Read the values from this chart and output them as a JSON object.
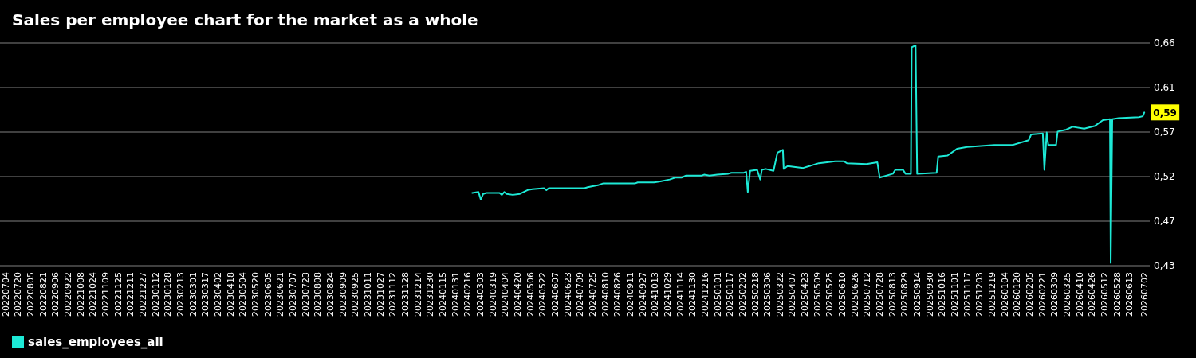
{
  "chart_data": {
    "type": "line",
    "title": "Sales per employee chart for the market as a whole",
    "x": [
      "2024-02-22",
      "2024-03-01",
      "2024-03-04",
      "2024-03-07",
      "2024-03-11",
      "2024-03-28",
      "2024-03-31",
      "2024-04-03",
      "2024-04-06",
      "2024-04-14",
      "2024-04-23",
      "2024-05-03",
      "2024-05-09",
      "2024-05-24",
      "2024-05-27",
      "2024-05-30",
      "2024-07-15",
      "2024-07-19",
      "2024-08-01",
      "2024-08-08",
      "2024-08-29",
      "2024-09-08",
      "2024-09-18",
      "2024-09-21",
      "2024-10-12",
      "2024-10-20",
      "2024-11-01",
      "2024-11-08",
      "2024-11-16",
      "2024-11-22",
      "2024-12-12",
      "2024-12-15",
      "2024-12-22",
      "2025-01-01",
      "2025-01-15",
      "2025-01-19",
      "2025-02-04",
      "2025-02-07",
      "2025-02-09",
      "2025-02-12",
      "2025-02-21",
      "2025-02-25",
      "2025-02-27",
      "2025-03-04",
      "2025-03-14",
      "2025-03-19",
      "2025-03-24",
      "2025-03-26",
      "2025-03-27",
      "2025-04-01",
      "2025-04-21",
      "2025-05-11",
      "2025-06-01",
      "2025-06-12",
      "2025-06-16",
      "2025-07-11",
      "2025-07-25",
      "2025-07-28",
      "2025-08-14",
      "2025-08-17",
      "2025-08-27",
      "2025-08-30",
      "2025-09-06",
      "2025-09-07",
      "2025-09-12",
      "2025-09-14",
      "2025-10-09",
      "2025-10-11",
      "2025-10-23",
      "2025-11-04",
      "2025-11-17",
      "2025-12-22",
      "2026-01-14",
      "2026-02-04",
      "2026-02-07",
      "2026-02-22",
      "2026-02-24",
      "2026-02-27",
      "2026-03-01",
      "2026-03-11",
      "2026-03-13",
      "2026-03-24",
      "2026-04-01",
      "2026-04-16",
      "2026-04-30",
      "2026-05-10",
      "2026-05-19",
      "2026-05-20",
      "2026-05-22",
      "2026-05-30",
      "2026-06-25",
      "2026-06-30",
      "2026-07-02"
    ],
    "series": [
      {
        "name": "sales_employees_all",
        "color": "#1de9d6",
        "values": [
          0.502,
          0.503,
          0.495,
          0.501,
          0.502,
          0.502,
          0.5,
          0.503,
          0.501,
          0.5,
          0.501,
          0.505,
          0.506,
          0.507,
          0.505,
          0.507,
          0.507,
          0.508,
          0.51,
          0.512,
          0.512,
          0.512,
          0.512,
          0.513,
          0.513,
          0.514,
          0.516,
          0.518,
          0.518,
          0.52,
          0.52,
          0.521,
          0.52,
          0.521,
          0.522,
          0.523,
          0.523,
          0.524,
          0.503,
          0.525,
          0.526,
          0.516,
          0.526,
          0.527,
          0.525,
          0.544,
          0.546,
          0.547,
          0.527,
          0.53,
          0.528,
          0.533,
          0.535,
          0.535,
          0.533,
          0.532,
          0.534,
          0.518,
          0.522,
          0.526,
          0.526,
          0.522,
          0.522,
          0.654,
          0.656,
          0.522,
          0.523,
          0.54,
          0.541,
          0.548,
          0.55,
          0.552,
          0.552,
          0.557,
          0.563,
          0.564,
          0.526,
          0.565,
          0.552,
          0.552,
          0.566,
          0.568,
          0.571,
          0.569,
          0.572,
          0.578,
          0.579,
          0.429,
          0.579,
          0.58,
          0.581,
          0.582,
          0.586
        ]
      }
    ],
    "xlim": [
      "2022-06-27",
      "2026-07-09"
    ],
    "xticks": [
      {
        "value": "2022-07-04",
        "label": "20220704"
      },
      {
        "value": "2022-07-20",
        "label": "20220720"
      },
      {
        "value": "2022-08-05",
        "label": "20220805"
      },
      {
        "value": "2022-08-21",
        "label": "20220821"
      },
      {
        "value": "2022-09-06",
        "label": "20220906"
      },
      {
        "value": "2022-09-22",
        "label": "20220922"
      },
      {
        "value": "2022-10-08",
        "label": "20221008"
      },
      {
        "value": "2022-10-24",
        "label": "20221024"
      },
      {
        "value": "2022-11-09",
        "label": "20221109"
      },
      {
        "value": "2022-11-25",
        "label": "20221125"
      },
      {
        "value": "2022-12-11",
        "label": "20221211"
      },
      {
        "value": "2022-12-27",
        "label": "20221227"
      },
      {
        "value": "2023-01-12",
        "label": "20230112"
      },
      {
        "value": "2023-01-28",
        "label": "20230128"
      },
      {
        "value": "2023-02-13",
        "label": "20230213"
      },
      {
        "value": "2023-03-01",
        "label": "20230301"
      },
      {
        "value": "2023-03-17",
        "label": "20230317"
      },
      {
        "value": "2023-04-02",
        "label": "20230402"
      },
      {
        "value": "2023-04-18",
        "label": "20230418"
      },
      {
        "value": "2023-05-04",
        "label": "20230504"
      },
      {
        "value": "2023-05-20",
        "label": "20230520"
      },
      {
        "value": "2023-06-05",
        "label": "20230605"
      },
      {
        "value": "2023-06-21",
        "label": "20230621"
      },
      {
        "value": "2023-07-07",
        "label": "20230707"
      },
      {
        "value": "2023-07-23",
        "label": "20230723"
      },
      {
        "value": "2023-08-08",
        "label": "20230808"
      },
      {
        "value": "2023-08-24",
        "label": "20230824"
      },
      {
        "value": "2023-09-09",
        "label": "20230909"
      },
      {
        "value": "2023-09-25",
        "label": "20230925"
      },
      {
        "value": "2023-10-11",
        "label": "20231011"
      },
      {
        "value": "2023-10-27",
        "label": "20231027"
      },
      {
        "value": "2023-11-12",
        "label": "20231112"
      },
      {
        "value": "2023-11-28",
        "label": "20231128"
      },
      {
        "value": "2023-12-14",
        "label": "20231214"
      },
      {
        "value": "2023-12-30",
        "label": "20231230"
      },
      {
        "value": "2024-01-15",
        "label": "20240115"
      },
      {
        "value": "2024-01-31",
        "label": "20240131"
      },
      {
        "value": "2024-02-16",
        "label": "20240216"
      },
      {
        "value": "2024-03-03",
        "label": "20240303"
      },
      {
        "value": "2024-03-19",
        "label": "20240319"
      },
      {
        "value": "2024-04-04",
        "label": "20240404"
      },
      {
        "value": "2024-04-20",
        "label": "20240420"
      },
      {
        "value": "2024-05-06",
        "label": "20240506"
      },
      {
        "value": "2024-05-22",
        "label": "20240522"
      },
      {
        "value": "2024-06-07",
        "label": "20240607"
      },
      {
        "value": "2024-06-23",
        "label": "20240623"
      },
      {
        "value": "2024-07-09",
        "label": "20240709"
      },
      {
        "value": "2024-07-25",
        "label": "20240725"
      },
      {
        "value": "2024-08-10",
        "label": "20240810"
      },
      {
        "value": "2024-08-26",
        "label": "20240826"
      },
      {
        "value": "2024-09-11",
        "label": "20240911"
      },
      {
        "value": "2024-09-27",
        "label": "20240927"
      },
      {
        "value": "2024-10-13",
        "label": "20241013"
      },
      {
        "value": "2024-10-29",
        "label": "20241029"
      },
      {
        "value": "2024-11-14",
        "label": "20241114"
      },
      {
        "value": "2024-11-30",
        "label": "20241130"
      },
      {
        "value": "2024-12-16",
        "label": "20241216"
      },
      {
        "value": "2025-01-01",
        "label": "20250101"
      },
      {
        "value": "2025-01-17",
        "label": "20250117"
      },
      {
        "value": "2025-02-02",
        "label": "20250202"
      },
      {
        "value": "2025-02-18",
        "label": "20250218"
      },
      {
        "value": "2025-03-06",
        "label": "20250306"
      },
      {
        "value": "2025-03-22",
        "label": "20250322"
      },
      {
        "value": "2025-04-07",
        "label": "20250407"
      },
      {
        "value": "2025-04-23",
        "label": "20250423"
      },
      {
        "value": "2025-05-09",
        "label": "20250509"
      },
      {
        "value": "2025-05-25",
        "label": "20250525"
      },
      {
        "value": "2025-06-10",
        "label": "20250610"
      },
      {
        "value": "2025-06-26",
        "label": "20250626"
      },
      {
        "value": "2025-07-12",
        "label": "20250712"
      },
      {
        "value": "2025-07-28",
        "label": "20250728"
      },
      {
        "value": "2025-08-13",
        "label": "20250813"
      },
      {
        "value": "2025-08-29",
        "label": "20250829"
      },
      {
        "value": "2025-09-14",
        "label": "20250914"
      },
      {
        "value": "2025-09-30",
        "label": "20250930"
      },
      {
        "value": "2025-10-16",
        "label": "20251016"
      },
      {
        "value": "2025-11-01",
        "label": "20251101"
      },
      {
        "value": "2025-11-17",
        "label": "20251117"
      },
      {
        "value": "2025-12-03",
        "label": "20251203"
      },
      {
        "value": "2025-12-19",
        "label": "20251219"
      },
      {
        "value": "2026-01-04",
        "label": "20260104"
      },
      {
        "value": "2026-01-20",
        "label": "20260120"
      },
      {
        "value": "2026-02-05",
        "label": "20260205"
      },
      {
        "value": "2026-02-21",
        "label": "20260221"
      },
      {
        "value": "2026-03-09",
        "label": "20260309"
      },
      {
        "value": "2026-03-25",
        "label": "20260325"
      },
      {
        "value": "2026-04-10",
        "label": "20260410"
      },
      {
        "value": "2026-04-26",
        "label": "20260426"
      },
      {
        "value": "2026-05-12",
        "label": "20260512"
      },
      {
        "value": "2026-05-28",
        "label": "20260528"
      },
      {
        "value": "2026-06-13",
        "label": "20260613"
      },
      {
        "value": "2026-07-02",
        "label": "20260702"
      }
    ],
    "ylim": [
      0.426,
      0.6585
    ],
    "yticks": [
      {
        "value": 0.426,
        "label": "0,43"
      },
      {
        "value": 0.4725,
        "label": "0,47"
      },
      {
        "value": 0.519,
        "label": "0,52"
      },
      {
        "value": 0.5655,
        "label": "0,57"
      },
      {
        "value": 0.612,
        "label": "0,61"
      },
      {
        "value": 0.6585,
        "label": "0,66"
      }
    ],
    "annotations": [
      {
        "text": "0,59",
        "x": "2026-07-02",
        "y": 0.586
      }
    ],
    "grid": "y",
    "legend": "bottom left",
    "marker": "none",
    "line_style": "solid"
  }
}
